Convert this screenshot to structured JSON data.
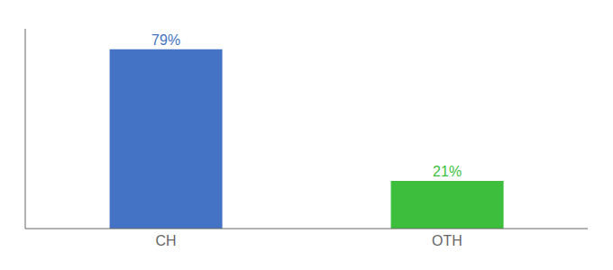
{
  "chart_data": {
    "type": "bar",
    "categories": [
      "CH",
      "OTH"
    ],
    "values": [
      79,
      21
    ],
    "value_labels": [
      "79%",
      "21%"
    ],
    "data_labels": true,
    "colors": [
      "#4472c4",
      "#3dbf3d"
    ],
    "ylim": [
      0,
      88
    ],
    "tick_labels": "x",
    "grid": false
  }
}
